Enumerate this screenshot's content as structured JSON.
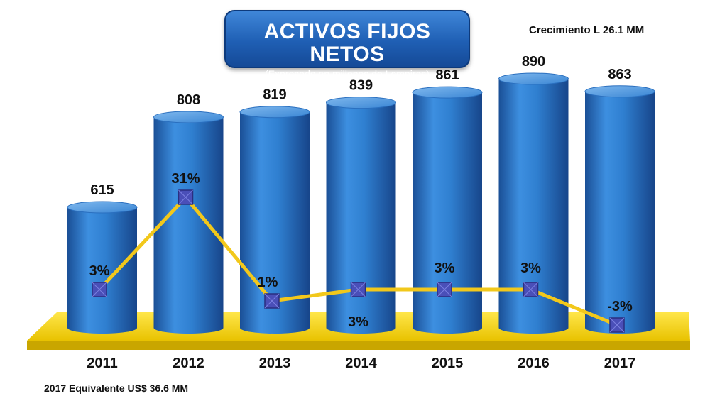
{
  "header": {
    "title": "ACTIVOS FIJOS NETOS",
    "subtitle": "(Expresado en millones de Lempiras)",
    "growth_note": "Crecimiento L 26.1 MM",
    "equivalent_note": "2017 Equivalente US$ 36.6 MM"
  },
  "colors": {
    "bar": "#2f7fd0",
    "bar_dark": "#1a4f96",
    "base": "#f5d000",
    "line": "#f2c81b",
    "marker": "#4a4fb8"
  },
  "chart_data": {
    "type": "bar",
    "title": "ACTIVOS FIJOS NETOS",
    "subtitle": "(Expresado en millones de Lempiras)",
    "categories": [
      "2011",
      "2012",
      "2013",
      "2014",
      "2015",
      "2016",
      "2017"
    ],
    "values": [
      615,
      808,
      819,
      839,
      861,
      890,
      863
    ],
    "value_labels": [
      "615",
      "808",
      "819",
      "839",
      "861",
      "890",
      "863"
    ],
    "growth_line": {
      "type": "line",
      "values": [
        3,
        31,
        1,
        3,
        3,
        3,
        -3
      ],
      "labels": [
        "3%",
        "31%",
        "1%",
        "3%",
        "3%",
        "3%",
        "-3%"
      ]
    },
    "xlabel": "",
    "ylabel": "",
    "grid": false,
    "legend": "none"
  }
}
